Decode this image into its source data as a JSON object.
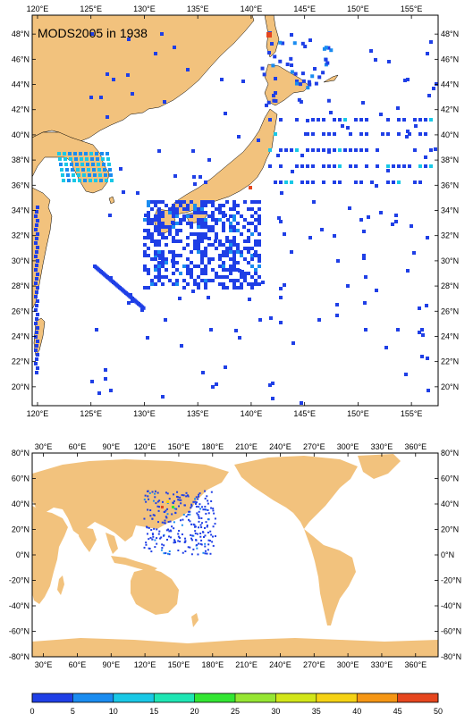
{
  "map_top": {
    "title": "MODS2005 in 1938",
    "x_ticks": [
      "120°E",
      "125°E",
      "130°E",
      "135°E",
      "140°E",
      "145°E",
      "150°E",
      "155°E"
    ],
    "y_ticks": [
      "48°N",
      "46°N",
      "44°N",
      "42°N",
      "40°N",
      "38°N",
      "36°N",
      "34°N",
      "32°N",
      "30°N",
      "28°N",
      "26°N",
      "24°N",
      "22°N",
      "20°N"
    ],
    "lon_range": [
      119.5,
      157.5
    ],
    "lat_range": [
      18.5,
      49.5
    ]
  },
  "map_global": {
    "x_ticks": [
      "30°E",
      "60°E",
      "90°E",
      "120°E",
      "150°E",
      "180°E",
      "210°E",
      "240°E",
      "270°E",
      "300°E",
      "330°E",
      "360°E"
    ],
    "y_ticks": [
      "80°N",
      "60°N",
      "40°N",
      "20°N",
      "0°N",
      "-20°N",
      "-40°N",
      "-60°N",
      "-80°N"
    ],
    "lon_range": [
      20,
      380
    ],
    "lat_range": [
      -80,
      80
    ]
  },
  "colorbar": {
    "labels": [
      "0",
      "5",
      "10",
      "15",
      "20",
      "25",
      "30",
      "35",
      "40",
      "45",
      "50"
    ],
    "colors": [
      "#1f3fe6",
      "#1a8cf0",
      "#19c8e6",
      "#1ee6b4",
      "#33e633",
      "#96e633",
      "#d2e619",
      "#f5d214",
      "#f59614",
      "#e6461e"
    ]
  },
  "colors": {
    "land": "#f2c27d",
    "ocean": "#ffffff",
    "frame": "#000000"
  }
}
